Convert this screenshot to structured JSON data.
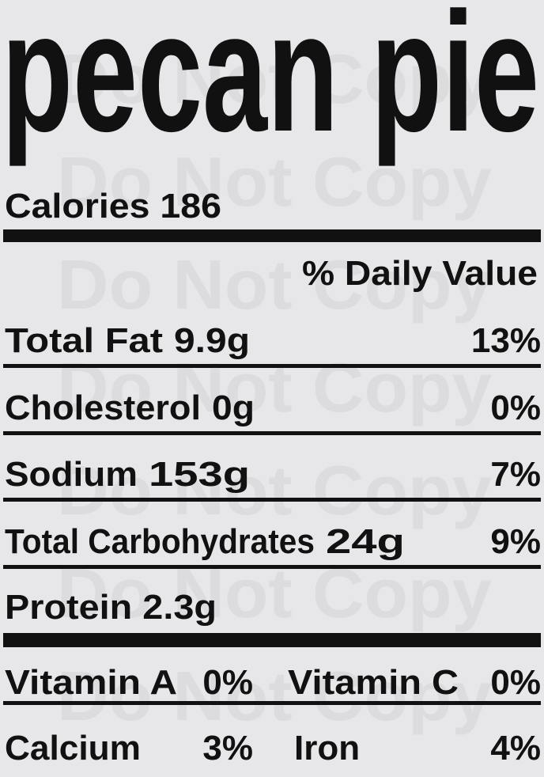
{
  "title": "pecan pie",
  "calories": {
    "label": "Calories",
    "value": "186"
  },
  "daily_value_header": "% Daily Value",
  "nutrients": [
    {
      "name": "Total Fat",
      "amount": "9.9g",
      "dv": "13%"
    },
    {
      "name": "Cholesterol",
      "amount": "0g",
      "dv": "0%"
    },
    {
      "name": "Sodium",
      "amount": "153g",
      "dv": "7%"
    },
    {
      "name": "Total Carbohydrates",
      "amount": "24g",
      "dv": "9%"
    }
  ],
  "protein": {
    "label": "Protein",
    "amount": "2.3g"
  },
  "vitamins": [
    {
      "name": "Vitamin A",
      "dv": "0%"
    },
    {
      "name": "Vitamin C",
      "dv": "0%"
    },
    {
      "name": "Calcium",
      "dv": "3%"
    },
    {
      "name": "Iron",
      "dv": "4%"
    }
  ],
  "watermark": "Do Not Copy"
}
